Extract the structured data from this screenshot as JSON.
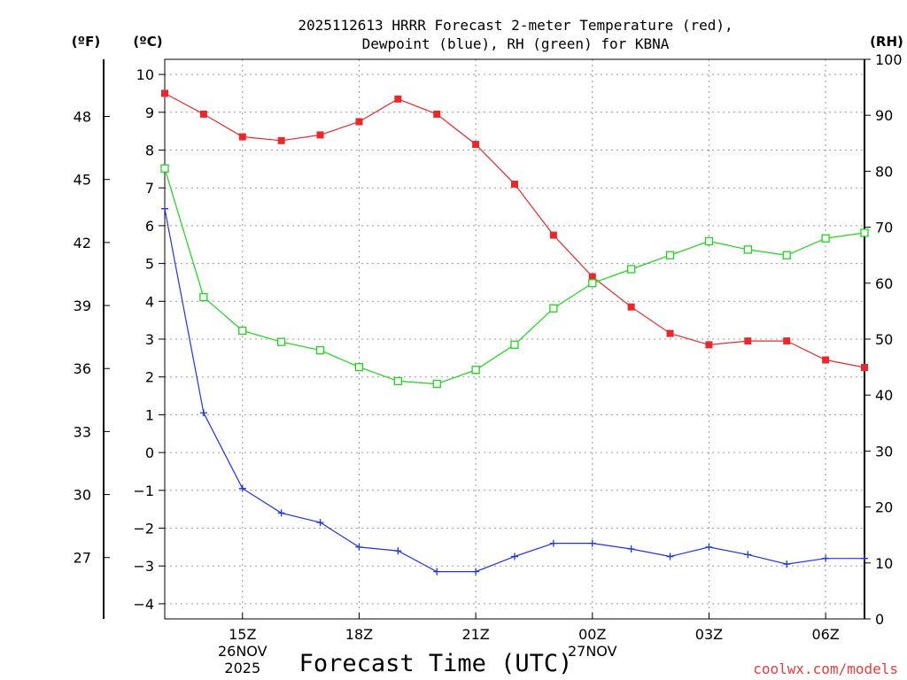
{
  "chart_data": {
    "type": "line",
    "title_line1": "2025112613 HRRR Forecast 2-meter Temperature (red),",
    "title_line2": "Dewpoint (blue), RH (green) for KBNA",
    "xlabel": "Forecast Time (UTC)",
    "left_unit_f": "(ºF)",
    "left_unit_c": "(ºC)",
    "right_unit": "(RH)",
    "hours": [
      13,
      14,
      15,
      16,
      17,
      18,
      19,
      20,
      21,
      22,
      23,
      24,
      25,
      26,
      27,
      28,
      29,
      30,
      31
    ],
    "x_ticks": [
      {
        "hour": 15,
        "label": "15Z",
        "sub1": "26NOV",
        "sub2": "2025"
      },
      {
        "hour": 18,
        "label": "18Z",
        "sub1": "",
        "sub2": ""
      },
      {
        "hour": 21,
        "label": "21Z",
        "sub1": "",
        "sub2": ""
      },
      {
        "hour": 24,
        "label": "00Z",
        "sub1": "27NOV",
        "sub2": ""
      },
      {
        "hour": 27,
        "label": "03Z",
        "sub1": "",
        "sub2": ""
      },
      {
        "hour": 30,
        "label": "06Z",
        "sub1": "",
        "sub2": ""
      }
    ],
    "celsius_range": [
      -4.4,
      10.4
    ],
    "celsius_ticks": [
      -4,
      -3,
      -2,
      -1,
      0,
      1,
      2,
      3,
      4,
      5,
      6,
      7,
      8,
      9,
      10
    ],
    "fahrenheit_ticks": [
      27,
      30,
      33,
      36,
      39,
      42,
      45,
      48
    ],
    "rh_range": [
      0,
      100
    ],
    "rh_ticks": [
      0,
      10,
      20,
      30,
      40,
      50,
      60,
      70,
      80,
      90,
      100
    ],
    "series": [
      {
        "name": "Temperature",
        "unit": "C",
        "color": "#e8282a",
        "marker": "filled-square",
        "values": [
          9.5,
          8.95,
          8.35,
          8.25,
          8.4,
          8.75,
          9.35,
          8.95,
          8.15,
          7.1,
          5.75,
          4.65,
          3.85,
          3.15,
          2.85,
          2.95,
          2.95,
          2.45,
          2.25
        ]
      },
      {
        "name": "Dewpoint",
        "unit": "C",
        "color": "#2034e0",
        "marker": "plus",
        "values": [
          6.45,
          1.05,
          -0.95,
          -1.6,
          -1.85,
          -2.5,
          -2.6,
          -3.15,
          -3.15,
          -2.75,
          -2.4,
          -2.4,
          -2.55,
          -2.75,
          -2.5,
          -2.7,
          -2.95,
          -2.8,
          -2.8
        ]
      },
      {
        "name": "RH",
        "unit": "%",
        "color": "#1ed41e",
        "marker": "open-square",
        "values": [
          80.5,
          57.5,
          51.5,
          49.5,
          48,
          45,
          42.5,
          42,
          44.5,
          49,
          55.5,
          60,
          62.5,
          65,
          67.5,
          66,
          65,
          68,
          69
        ]
      }
    ],
    "credit": "coolwx.com/models",
    "credit_color": "#e63c3c"
  }
}
